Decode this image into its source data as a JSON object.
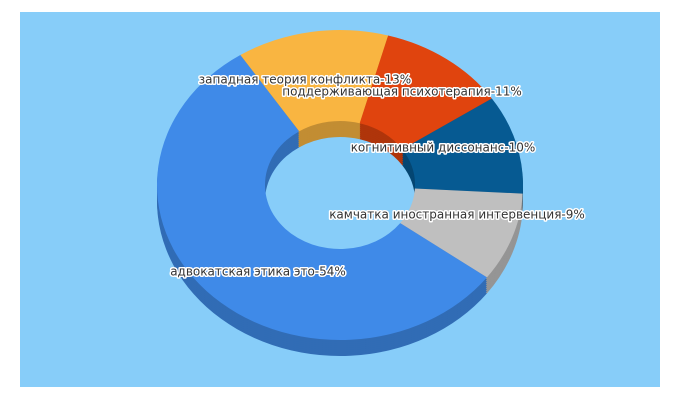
{
  "chart_data": {
    "type": "donut3d",
    "categories": [
      "западная теория конфликта-13%",
      "поддерживающая психотерапия-11%",
      "когнитивный диссонанс-10%",
      "камчатка иностранная интервенция-9%",
      "адвокатская этика это-54%"
    ],
    "values": [
      13,
      11,
      10,
      9,
      54
    ],
    "colors": [
      "#f9b541",
      "#e0440e",
      "#065a92",
      "#bfbfbf",
      "#3f8ae8"
    ]
  }
}
